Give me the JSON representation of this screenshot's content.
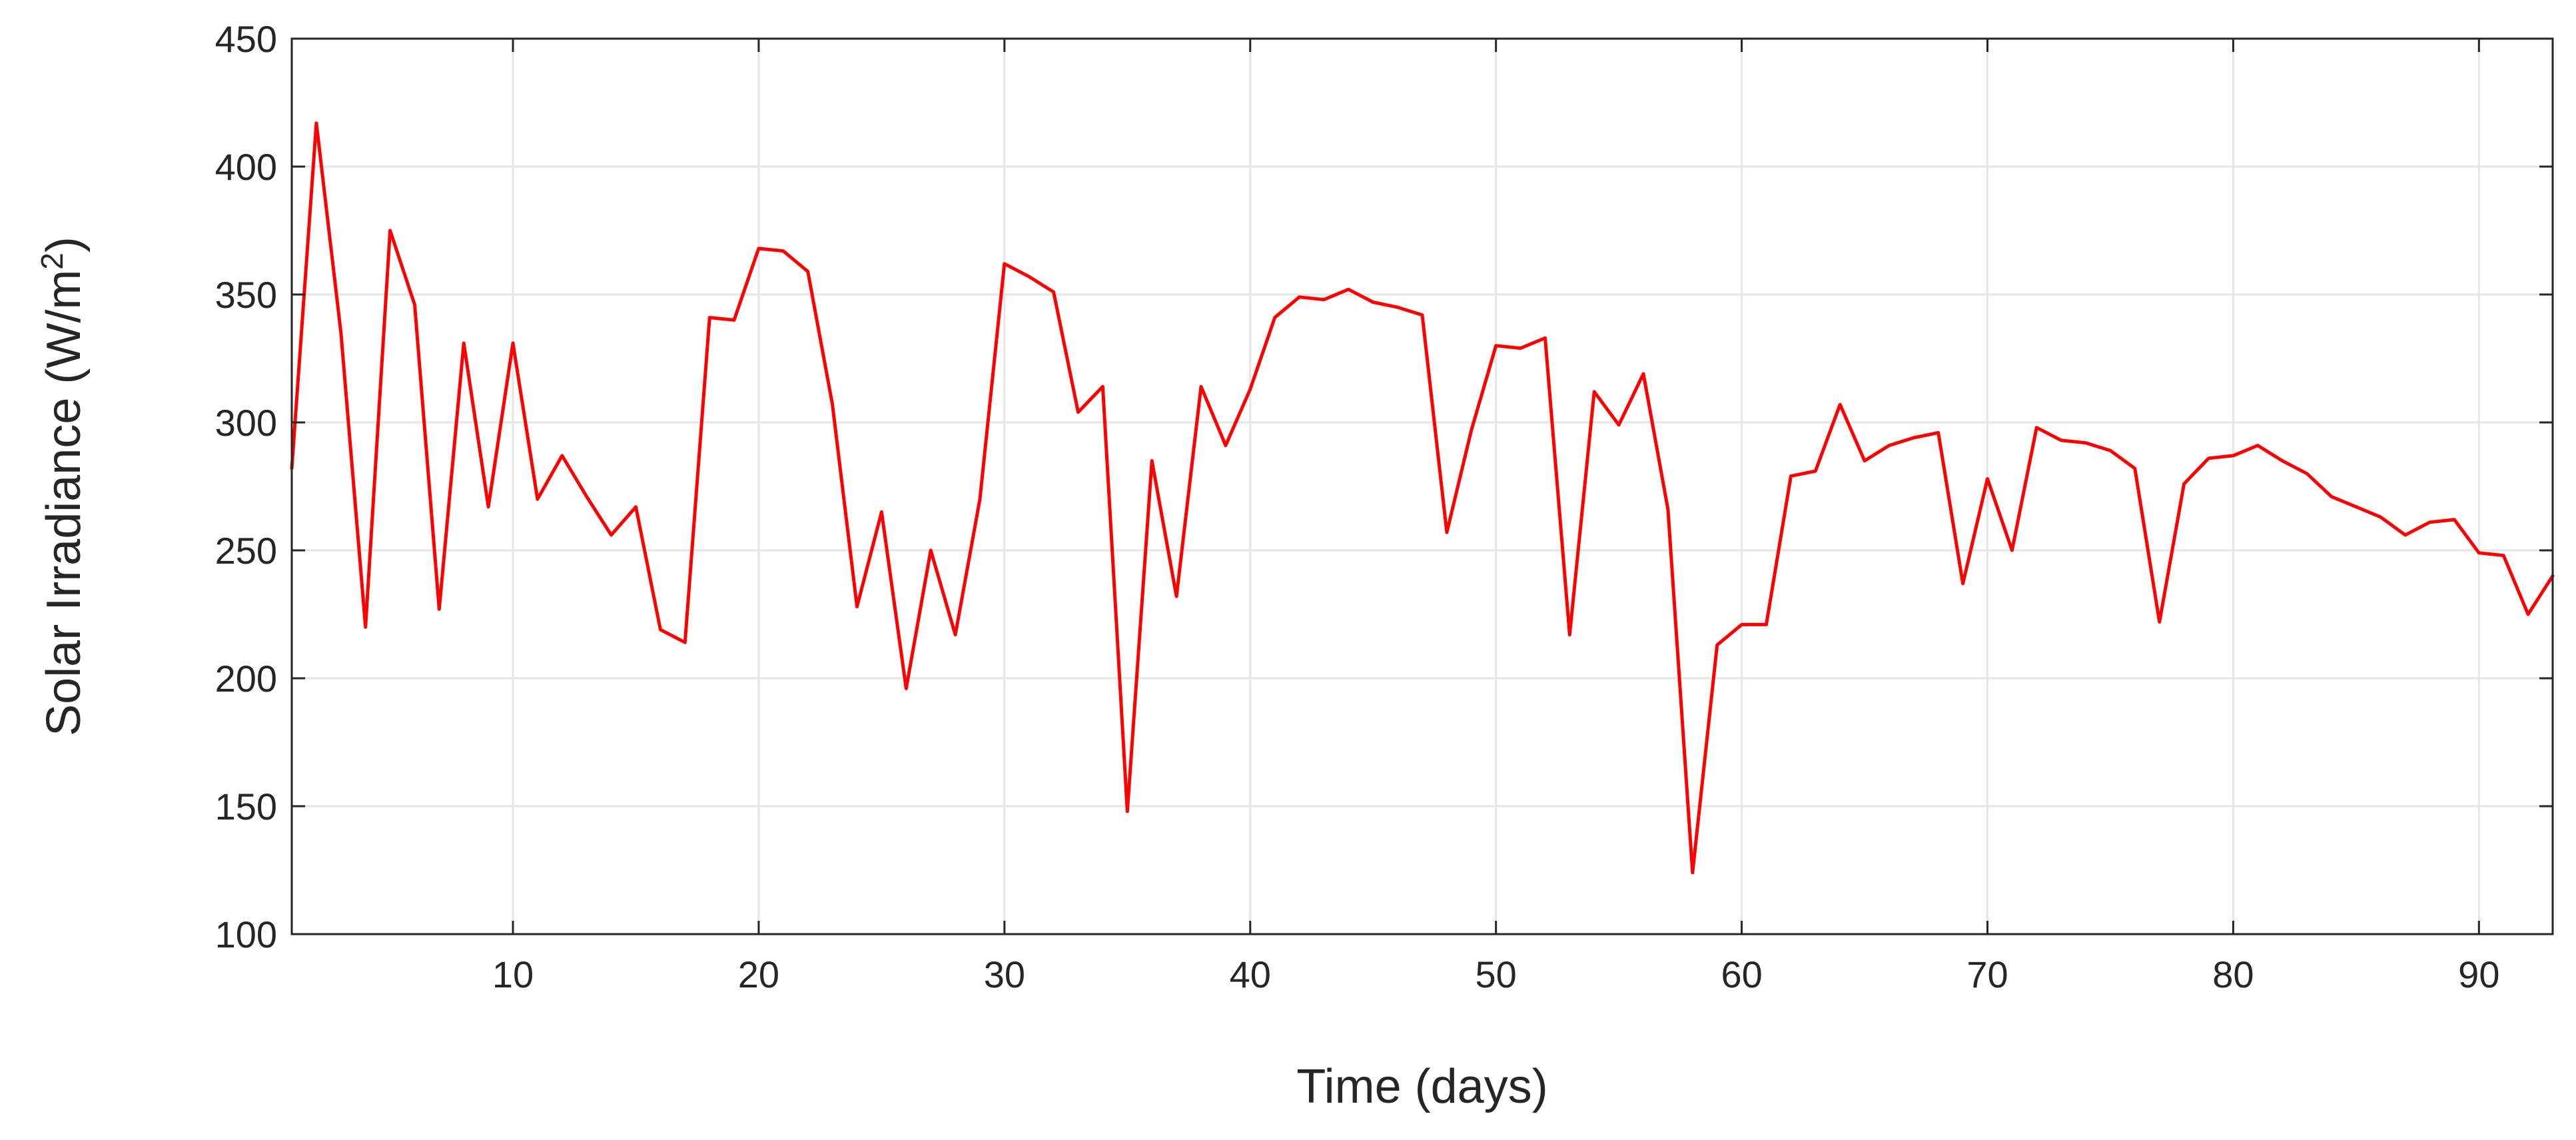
{
  "chart_data": {
    "type": "line",
    "title": "",
    "xlabel": "Time (days)",
    "ylabel": "Solar Irradiance (W/m",
    "ylabel_superscript": "2",
    "ylabel_close": ")",
    "xlim": [
      1,
      93
    ],
    "ylim": [
      100,
      450
    ],
    "xticks": [
      10,
      20,
      30,
      40,
      50,
      60,
      70,
      80,
      90
    ],
    "yticks": [
      100,
      150,
      200,
      250,
      300,
      350,
      400,
      450
    ],
    "grid": true,
    "line_color": "#ff0000",
    "series": [
      {
        "x": [
          1,
          2,
          3,
          4,
          5,
          6,
          7,
          8,
          9,
          10,
          11,
          12,
          13,
          14,
          15,
          16,
          17,
          18,
          19,
          20,
          21,
          22,
          23,
          24,
          25,
          26,
          27,
          28,
          29,
          30,
          31,
          32,
          33,
          34,
          35,
          36,
          37,
          38,
          39,
          40,
          41,
          42,
          43,
          44,
          45,
          46,
          47,
          48,
          49,
          50,
          51,
          52,
          53,
          54,
          55,
          56,
          57,
          58,
          59,
          60,
          61,
          62,
          63,
          64,
          65,
          66,
          67,
          68,
          69,
          70,
          71,
          72,
          73,
          74,
          75,
          76,
          77,
          78,
          79,
          80,
          81,
          82,
          83,
          84,
          85,
          86,
          87,
          88,
          89,
          90,
          91,
          92,
          93
        ],
        "values": [
          282,
          417,
          335,
          220,
          375,
          346,
          227,
          331,
          267,
          331,
          270,
          287,
          271,
          256,
          267,
          219,
          214,
          341,
          340,
          368,
          367,
          359,
          307,
          228,
          265,
          196,
          250,
          217,
          270,
          362,
          357,
          351,
          304,
          314,
          148,
          285,
          232,
          314,
          291,
          313,
          341,
          349,
          348,
          352,
          347,
          345,
          342,
          257,
          297,
          330,
          329,
          333,
          217,
          312,
          299,
          319,
          266,
          124,
          213,
          221,
          221,
          279,
          281,
          307,
          285,
          291,
          294,
          296,
          237,
          278,
          250,
          298,
          293,
          292,
          289,
          282,
          222,
          276,
          286,
          287,
          291,
          285,
          280,
          271,
          267,
          263,
          256,
          261,
          262,
          249,
          248,
          225,
          240
        ]
      }
    ]
  }
}
